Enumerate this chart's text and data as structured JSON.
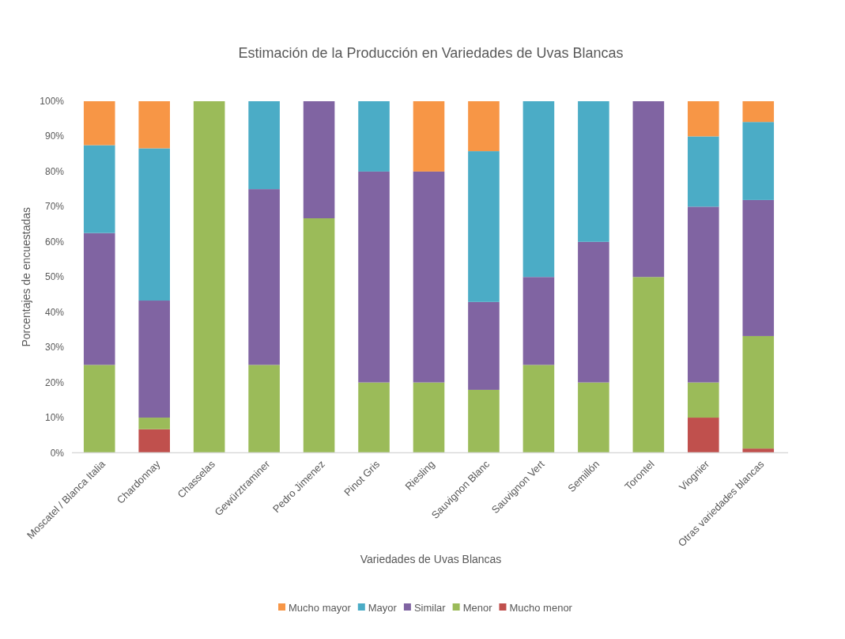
{
  "chart_data": {
    "type": "bar",
    "title": "Estimación de la Producción en Variedades de Uvas Blancas",
    "xlabel": "Variedades de Uvas Blancas",
    "ylabel": "Porcentajes de encuestadas",
    "categories": [
      "Moscatel / Blanca Italia",
      "Chardonnay",
      "Chasselas",
      "Gewürztraminer",
      "Pedro Jimenez",
      "Pinot Gris",
      "Riesling",
      "Sauvignon Blanc",
      "Sauvignon Vert",
      "Semillón",
      "Torontel",
      "Viognier",
      "Otras variedades blancas"
    ],
    "stacked": true,
    "legend": "bottom",
    "ylim": [
      0,
      100
    ],
    "yticks": [
      {
        "value": 0,
        "label": "0%"
      },
      {
        "value": 10,
        "label": "10%"
      },
      {
        "value": 20,
        "label": "20%"
      },
      {
        "value": 30,
        "label": "30%"
      },
      {
        "value": 40,
        "label": "40%"
      },
      {
        "value": 50,
        "label": "50%"
      },
      {
        "value": 60,
        "label": "60%"
      },
      {
        "value": 70,
        "label": "70%"
      },
      {
        "value": 80,
        "label": "80%"
      },
      {
        "value": 90,
        "label": "90%"
      },
      {
        "value": 100,
        "label": "100%"
      }
    ],
    "series": [
      {
        "name": "Mucho menor",
        "color": "#c0504d",
        "values": [
          0,
          6.7,
          0,
          0,
          0,
          0,
          0,
          0,
          0,
          0,
          0,
          10,
          1.2
        ]
      },
      {
        "name": "Menor",
        "color": "#9bbb59",
        "values": [
          25,
          3.3,
          100,
          25,
          66.7,
          20,
          20,
          17.9,
          25,
          20,
          50,
          10,
          32
        ]
      },
      {
        "name": "Similar",
        "color": "#8064a2",
        "values": [
          37.5,
          33.3,
          0,
          50,
          33.3,
          60,
          60,
          25,
          25,
          40,
          50,
          50,
          38.7
        ]
      },
      {
        "name": "Mayor",
        "color": "#4bacc6",
        "values": [
          25,
          43.3,
          0,
          25,
          0,
          20,
          0,
          42.9,
          50,
          40,
          0,
          20,
          22.2
        ]
      },
      {
        "name": "Mucho mayor",
        "color": "#f79646",
        "values": [
          12.5,
          13.4,
          0,
          0,
          0,
          0,
          20,
          14.2,
          0,
          0,
          0,
          10,
          5.9
        ]
      }
    ]
  }
}
